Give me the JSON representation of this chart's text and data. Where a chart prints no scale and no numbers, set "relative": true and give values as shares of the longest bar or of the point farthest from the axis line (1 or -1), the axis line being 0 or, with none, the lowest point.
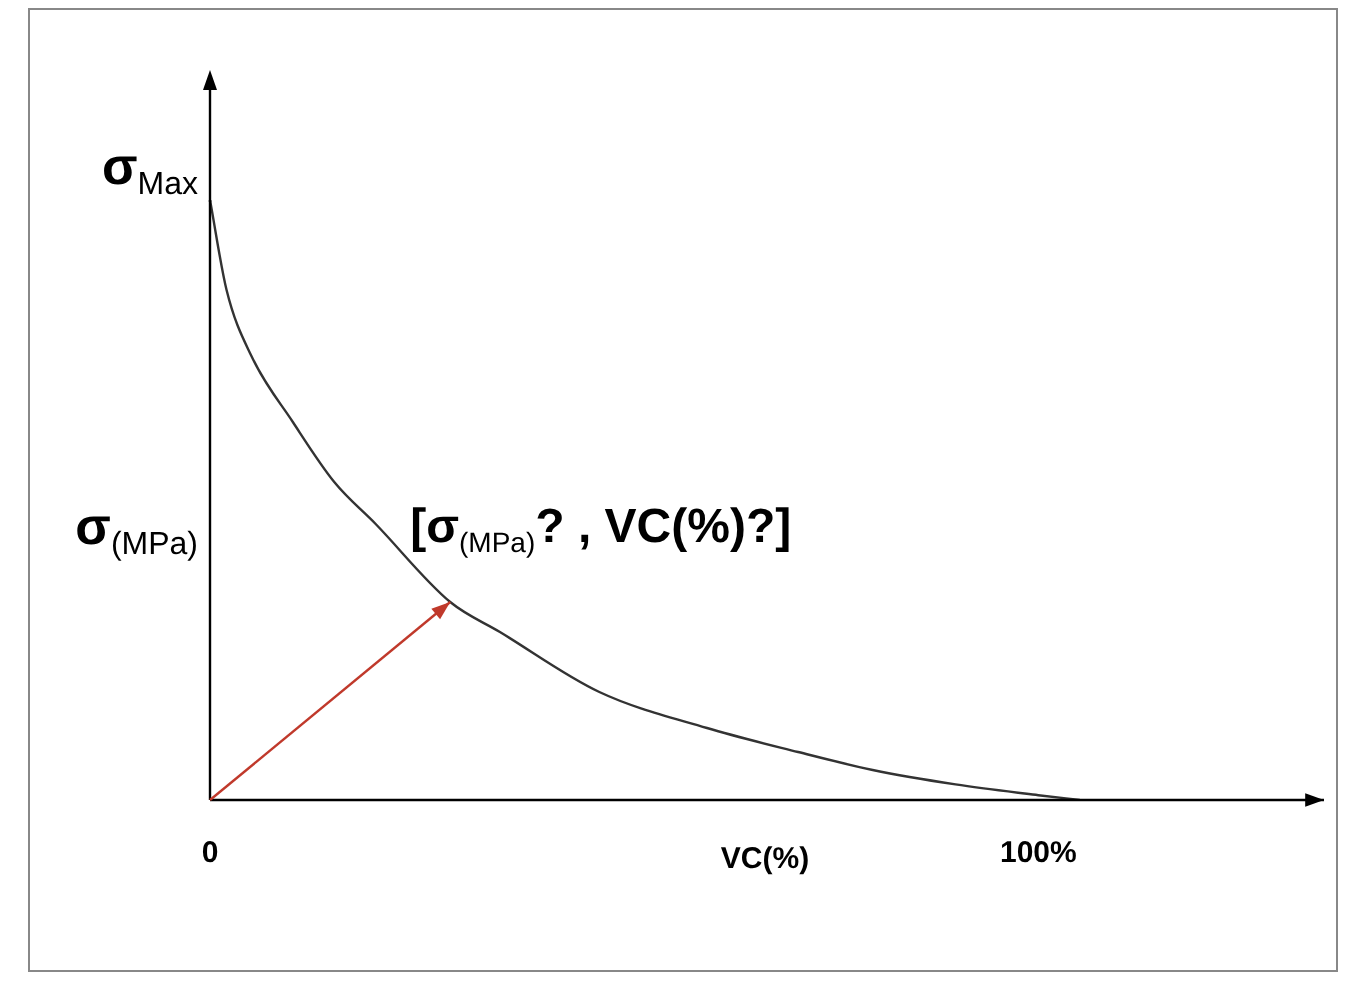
{
  "chart_data": {
    "type": "line",
    "relative": true,
    "xlabel": "VC(%)",
    "ylabel": "σ$_{(MPa)}$",
    "x": [
      0,
      2,
      5,
      10,
      15,
      20,
      29,
      35,
      47,
      60,
      71,
      80,
      90,
      100,
      105
    ],
    "xlim": [
      0,
      134
    ],
    "xticks": [
      0,
      {
        "value": 100,
        "label": "100%"
      }
    ],
    "series": [
      {
        "color": "#333333",
        "values": [
          1,
          0.85,
          0.74,
          0.63,
          0.53,
          0.46,
          0.33,
          0.28,
          0.18,
          0.12,
          0.08,
          0.05,
          0.026,
          0.008,
          0
        ]
      }
    ],
    "annotations": [
      {
        "text": "σ$_{Max}$",
        "x": 0,
        "y": 1
      },
      {
        "text": "[σ$_{(MPa)}$? , VC(%)?]",
        "x": 29,
        "y": 0.33
      }
    ],
    "grid": false,
    "legend": false,
    "marker": "none",
    "line_style": "solid"
  }
}
